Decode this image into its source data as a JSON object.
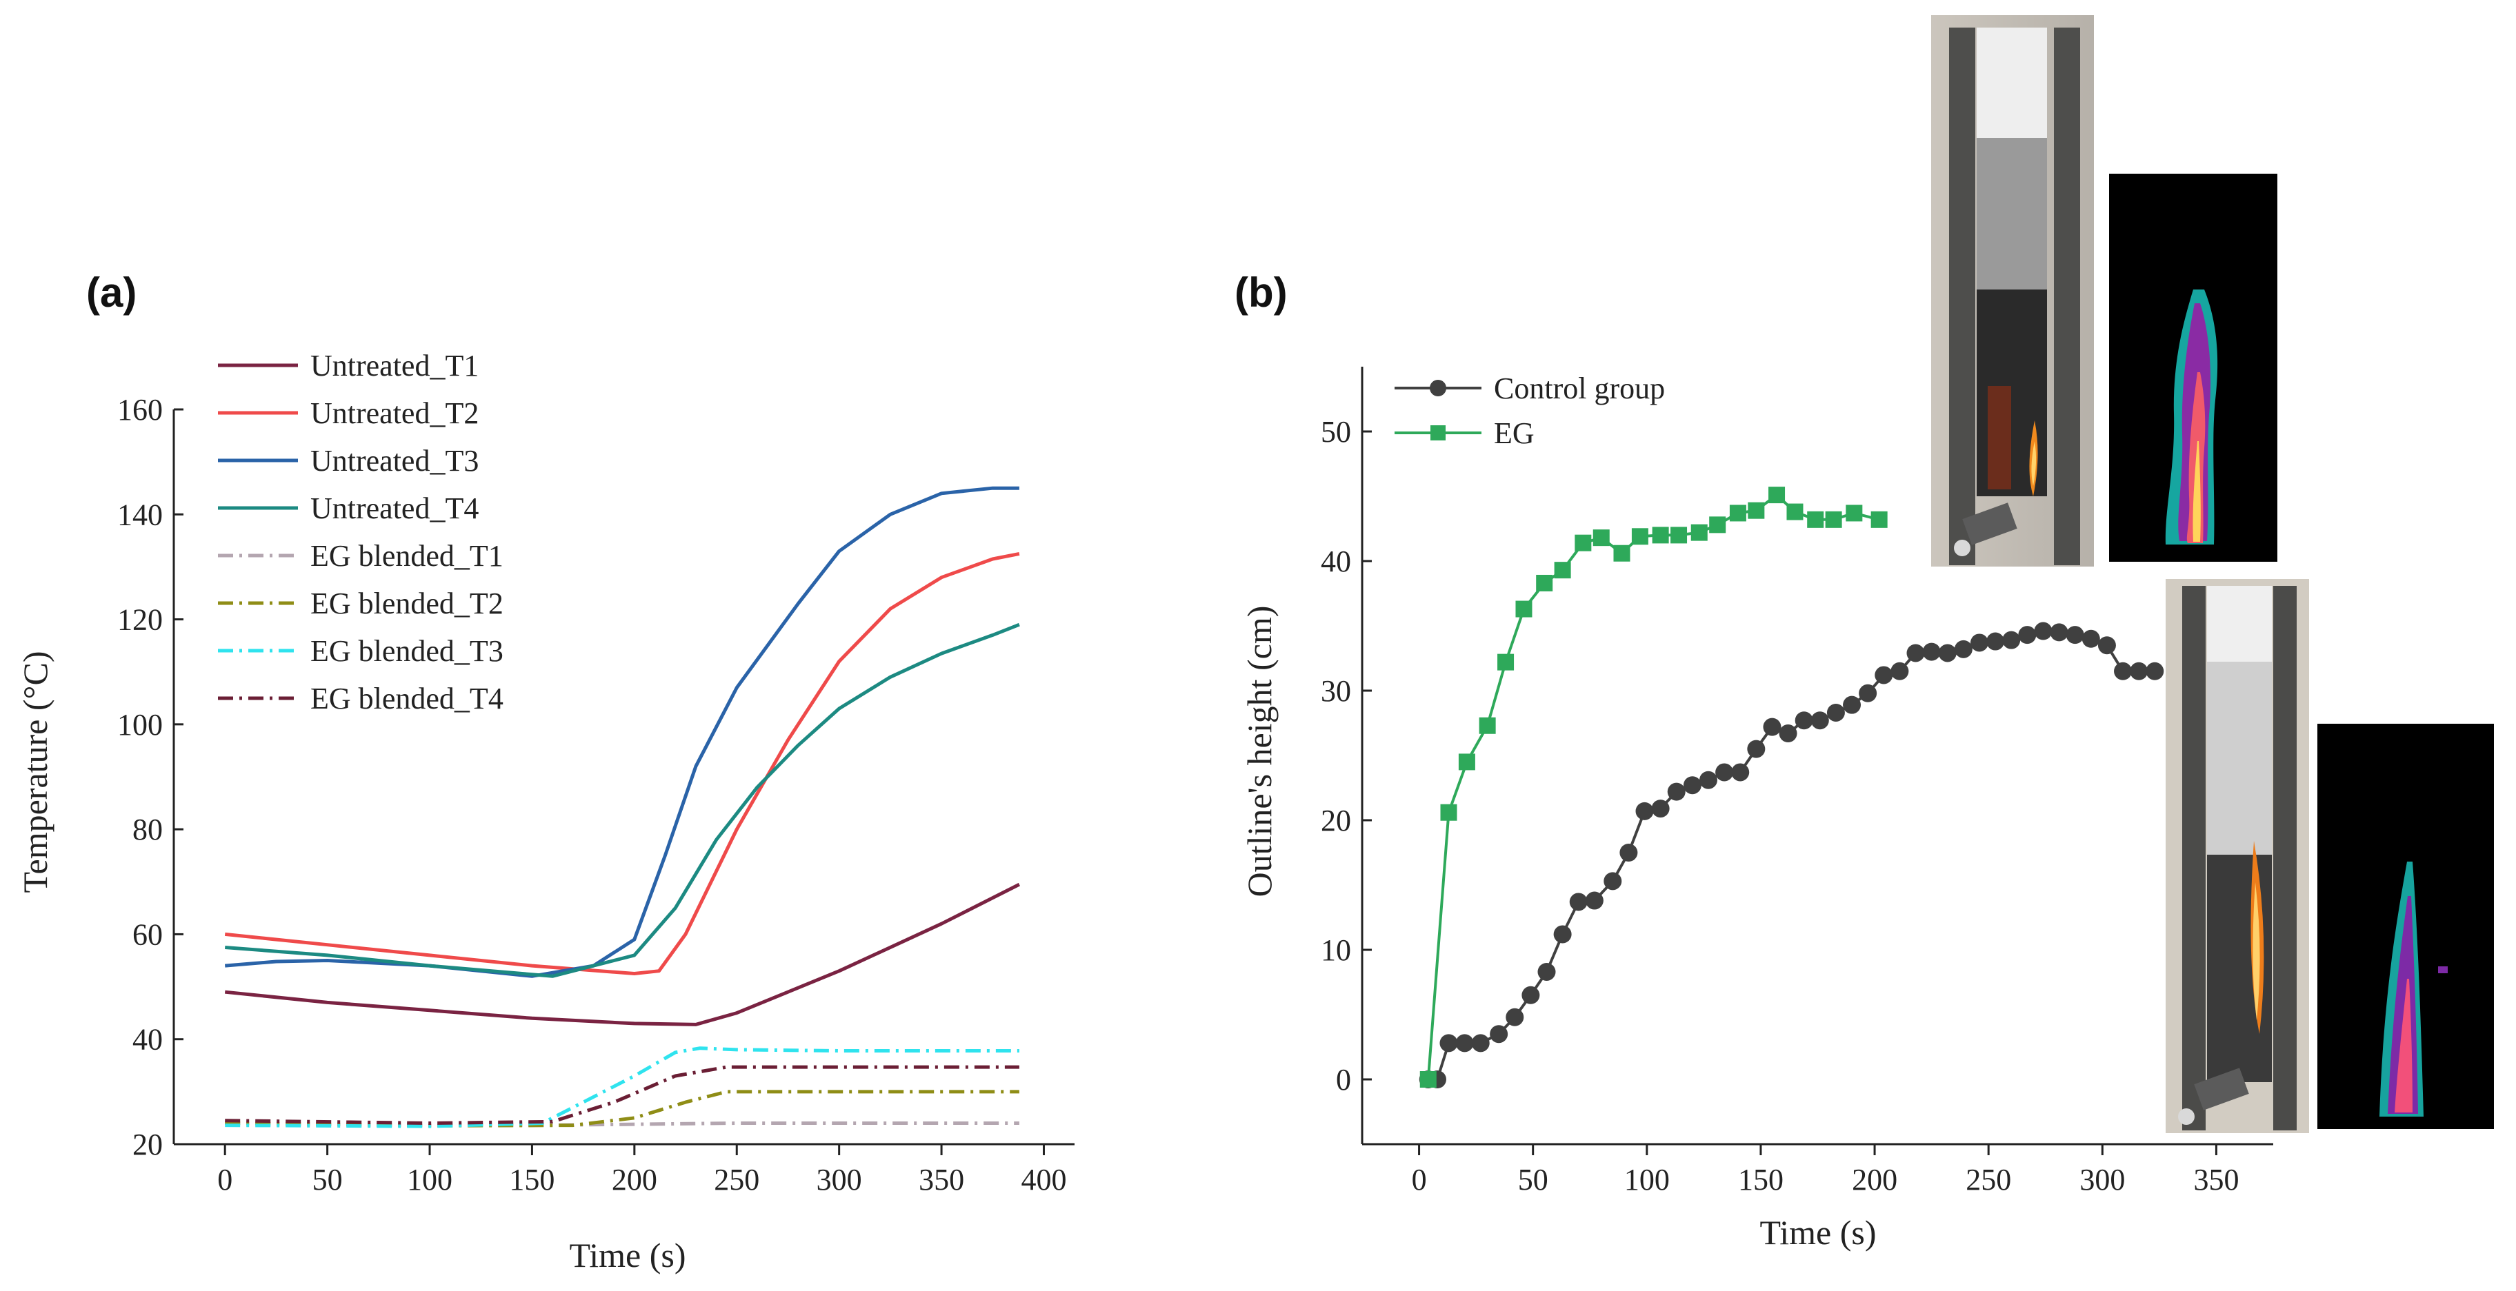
{
  "panels": {
    "a": {
      "label": "(a)"
    },
    "b": {
      "label": "(b)"
    }
  },
  "chart_data": [
    {
      "type": "line",
      "panel": "(a)",
      "title": "",
      "xlabel": "Time (s)",
      "ylabel": "Temperature (°C)",
      "xlim": [
        -25,
        415
      ],
      "ylim": [
        20,
        160
      ],
      "xticks": [
        0,
        50,
        100,
        150,
        200,
        250,
        300,
        350,
        400
      ],
      "yticks": [
        20,
        40,
        60,
        80,
        100,
        120,
        140,
        160
      ],
      "legend_position": "top-left",
      "series": [
        {
          "name": "Untreated_T1",
          "color": "#7a2342",
          "dash": "solid",
          "x": [
            0,
            50,
            100,
            150,
            200,
            230,
            250,
            300,
            350,
            388
          ],
          "y": [
            49,
            47,
            45.5,
            44,
            43,
            42.8,
            45,
            53,
            62,
            69.5
          ]
        },
        {
          "name": "Untreated_T2",
          "color": "#ef4a4a",
          "dash": "solid",
          "x": [
            0,
            50,
            100,
            150,
            200,
            212,
            225,
            250,
            275,
            300,
            325,
            350,
            375,
            388
          ],
          "y": [
            60,
            58,
            56,
            54,
            52.5,
            53,
            60,
            80,
            97,
            112,
            122,
            128,
            131.5,
            132.5
          ]
        },
        {
          "name": "Untreated_T3",
          "color": "#2a63a8",
          "dash": "solid",
          "x": [
            0,
            25,
            50,
            100,
            150,
            180,
            200,
            215,
            230,
            250,
            280,
            300,
            325,
            350,
            375,
            388
          ],
          "y": [
            54,
            54.8,
            55,
            54,
            52,
            54,
            59,
            75,
            92,
            107,
            123,
            133,
            140,
            144,
            145,
            145
          ]
        },
        {
          "name": "Untreated_T4",
          "color": "#1c8a82",
          "dash": "solid",
          "x": [
            0,
            50,
            100,
            160,
            200,
            220,
            240,
            260,
            280,
            300,
            325,
            350,
            375,
            388
          ],
          "y": [
            57.5,
            56,
            54,
            52,
            56,
            65,
            78,
            88,
            96,
            103,
            109,
            113.5,
            117,
            119
          ]
        },
        {
          "name": "EG blended_T1",
          "color": "#b4a6b0",
          "dash": "dashdot",
          "x": [
            0,
            100,
            150,
            200,
            250,
            300,
            350,
            388
          ],
          "y": [
            24,
            23.6,
            23.6,
            23.8,
            24,
            24,
            24,
            24
          ]
        },
        {
          "name": "EG blended_T2",
          "color": "#8f8d16",
          "dash": "dashdot",
          "x": [
            0,
            100,
            170,
            200,
            225,
            245,
            300,
            388
          ],
          "y": [
            24,
            23.5,
            23.6,
            25,
            28,
            30,
            30,
            30
          ]
        },
        {
          "name": "EG blended_T3",
          "color": "#2fe3ee",
          "dash": "dashdot",
          "x": [
            0,
            100,
            155,
            175,
            200,
            220,
            232,
            250,
            300,
            388
          ],
          "y": [
            23.6,
            23.4,
            24,
            28,
            33,
            37.5,
            38.3,
            38,
            37.8,
            37.8
          ]
        },
        {
          "name": "EG blended_T4",
          "color": "#6a1e34",
          "dash": "dashdot",
          "x": [
            0,
            100,
            160,
            190,
            220,
            245,
            300,
            388
          ],
          "y": [
            24.5,
            24,
            24.3,
            28,
            33,
            34.7,
            34.7,
            34.7
          ]
        }
      ]
    },
    {
      "type": "line",
      "panel": "(b)",
      "title": "",
      "xlabel": "Time (s)",
      "ylabel": "Outline's height (cm)",
      "xlim": [
        -25,
        375
      ],
      "ylim": [
        -5,
        55
      ],
      "xticks": [
        0,
        50,
        100,
        150,
        200,
        250,
        300,
        350
      ],
      "yticks": [
        0,
        10,
        20,
        30,
        40,
        50
      ],
      "legend_position": "top-left",
      "series": [
        {
          "name": "Control group",
          "color": "#404040",
          "marker": "circle",
          "x": [
            4,
            8,
            13,
            20,
            27,
            35,
            42,
            49,
            56,
            63,
            70,
            77,
            85,
            92,
            99,
            106,
            113,
            120,
            127,
            134,
            141,
            148,
            155,
            162,
            169,
            176,
            183,
            190,
            197,
            204,
            211,
            218,
            225,
            232,
            239,
            246,
            253,
            260,
            267,
            274,
            281,
            288,
            295,
            302,
            309,
            316,
            323
          ],
          "y": [
            0,
            0,
            2.8,
            2.8,
            2.8,
            3.5,
            4.8,
            6.5,
            8.3,
            11.2,
            13.7,
            13.8,
            15.3,
            17.5,
            20.7,
            20.9,
            22.2,
            22.7,
            23.1,
            23.7,
            23.7,
            25.5,
            27.2,
            26.7,
            27.7,
            27.7,
            28.3,
            28.9,
            29.8,
            31.2,
            31.5,
            32.9,
            33.0,
            32.9,
            33.2,
            33.7,
            33.8,
            33.9,
            34.3,
            34.6,
            34.5,
            34.3,
            34.0,
            33.5,
            31.5,
            31.5,
            31.5
          ]
        },
        {
          "name": "EG",
          "color": "#2ea95a",
          "marker": "square",
          "x": [
            4,
            13,
            21,
            30,
            38,
            46,
            55,
            63,
            72,
            80,
            89,
            97,
            106,
            114,
            123,
            131,
            140,
            148,
            157,
            165,
            174,
            182,
            191,
            202
          ],
          "y": [
            0,
            20.6,
            24.5,
            27.3,
            32.2,
            36.3,
            38.3,
            39.3,
            41.4,
            41.8,
            40.6,
            41.9,
            42.0,
            42.0,
            42.2,
            42.8,
            43.7,
            43.9,
            45.1,
            43.8,
            43.2,
            43.2,
            43.7,
            43.2
          ]
        }
      ]
    }
  ]
}
